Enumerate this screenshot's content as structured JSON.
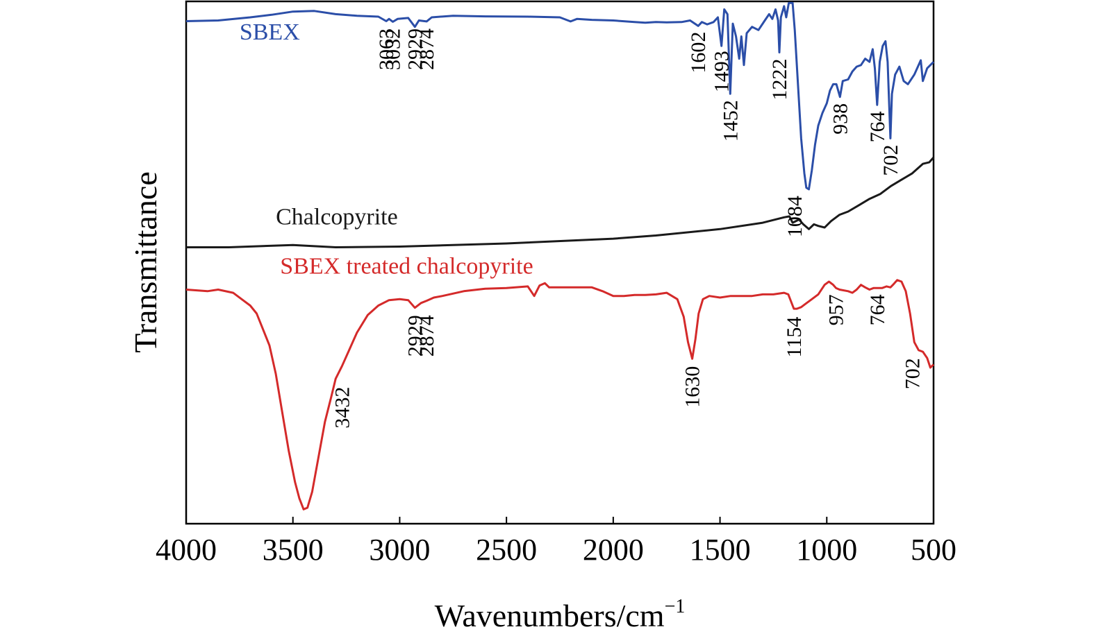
{
  "chart_data": {
    "type": "line",
    "xlabel": "Wavenumbers/cm",
    "xlabel_superscript": "−1",
    "ylabel": "Transmittance",
    "xlim": [
      4000,
      500
    ],
    "x_reversed": true,
    "y_ticks_shown": false,
    "grid": false,
    "xticks": [
      4000,
      3500,
      3000,
      2500,
      2000,
      1500,
      1000,
      500
    ],
    "series": [
      {
        "name": "SBEX",
        "color": "#2b4ea8",
        "points": [
          [
            4000,
            9.48
          ],
          [
            3850,
            9.5
          ],
          [
            3700,
            9.6
          ],
          [
            3600,
            9.68
          ],
          [
            3500,
            9.78
          ],
          [
            3400,
            9.8
          ],
          [
            3300,
            9.7
          ],
          [
            3200,
            9.65
          ],
          [
            3100,
            9.62
          ],
          [
            3063,
            9.48
          ],
          [
            3050,
            9.55
          ],
          [
            3032,
            9.46
          ],
          [
            3010,
            9.55
          ],
          [
            2960,
            9.58
          ],
          [
            2929,
            9.3
          ],
          [
            2910,
            9.5
          ],
          [
            2874,
            9.47
          ],
          [
            2850,
            9.6
          ],
          [
            2750,
            9.65
          ],
          [
            2600,
            9.63
          ],
          [
            2400,
            9.62
          ],
          [
            2250,
            9.6
          ],
          [
            2200,
            9.47
          ],
          [
            2170,
            9.55
          ],
          [
            2100,
            9.52
          ],
          [
            2000,
            9.5
          ],
          [
            1900,
            9.45
          ],
          [
            1850,
            9.43
          ],
          [
            1800,
            9.45
          ],
          [
            1750,
            9.44
          ],
          [
            1680,
            9.45
          ],
          [
            1640,
            9.5
          ],
          [
            1602,
            9.33
          ],
          [
            1585,
            9.45
          ],
          [
            1560,
            9.38
          ],
          [
            1530,
            9.45
          ],
          [
            1510,
            9.6
          ],
          [
            1493,
            8.7
          ],
          [
            1480,
            9.85
          ],
          [
            1465,
            9.7
          ],
          [
            1452,
            7.2
          ],
          [
            1440,
            9.4
          ],
          [
            1425,
            9.0
          ],
          [
            1410,
            8.3
          ],
          [
            1400,
            9.0
          ],
          [
            1388,
            8.1
          ],
          [
            1375,
            9.1
          ],
          [
            1350,
            9.3
          ],
          [
            1320,
            9.2
          ],
          [
            1290,
            9.5
          ],
          [
            1270,
            9.7
          ],
          [
            1255,
            9.55
          ],
          [
            1240,
            9.85
          ],
          [
            1228,
            9.5
          ],
          [
            1222,
            8.5
          ],
          [
            1215,
            9.6
          ],
          [
            1200,
            9.95
          ],
          [
            1190,
            9.6
          ],
          [
            1178,
            10.05
          ],
          [
            1160,
            10.05
          ],
          [
            1150,
            9.2
          ],
          [
            1135,
            7.5
          ],
          [
            1120,
            5.8
          ],
          [
            1105,
            4.7
          ],
          [
            1096,
            4.25
          ],
          [
            1084,
            4.2
          ],
          [
            1070,
            4.8
          ],
          [
            1055,
            5.6
          ],
          [
            1040,
            6.2
          ],
          [
            1020,
            6.6
          ],
          [
            1000,
            6.9
          ],
          [
            985,
            7.3
          ],
          [
            970,
            7.5
          ],
          [
            955,
            7.5
          ],
          [
            938,
            7.1
          ],
          [
            925,
            7.6
          ],
          [
            900,
            7.65
          ],
          [
            880,
            7.9
          ],
          [
            860,
            8.05
          ],
          [
            840,
            8.1
          ],
          [
            820,
            8.3
          ],
          [
            800,
            8.2
          ],
          [
            785,
            8.6
          ],
          [
            775,
            8.0
          ],
          [
            764,
            6.85
          ],
          [
            752,
            8.2
          ],
          [
            738,
            8.7
          ],
          [
            725,
            8.85
          ],
          [
            715,
            8.2
          ],
          [
            702,
            5.8
          ],
          [
            695,
            7.2
          ],
          [
            680,
            7.8
          ],
          [
            660,
            8.05
          ],
          [
            640,
            7.6
          ],
          [
            620,
            7.5
          ],
          [
            590,
            7.8
          ],
          [
            560,
            8.25
          ],
          [
            550,
            7.6
          ],
          [
            530,
            8.0
          ],
          [
            500,
            8.2
          ]
        ]
      },
      {
        "name": "Chalcopyrite",
        "color": "#1a1a1a",
        "points": [
          [
            4000,
            2.38
          ],
          [
            3800,
            2.38
          ],
          [
            3500,
            2.45
          ],
          [
            3300,
            2.38
          ],
          [
            3000,
            2.4
          ],
          [
            2500,
            2.5
          ],
          [
            2000,
            2.65
          ],
          [
            1800,
            2.75
          ],
          [
            1500,
            2.95
          ],
          [
            1300,
            3.15
          ],
          [
            1200,
            3.32
          ],
          [
            1175,
            3.35
          ],
          [
            1160,
            3.15
          ],
          [
            1130,
            3.25
          ],
          [
            1110,
            3.1
          ],
          [
            1084,
            2.95
          ],
          [
            1060,
            3.1
          ],
          [
            1040,
            3.05
          ],
          [
            1010,
            3.0
          ],
          [
            980,
            3.2
          ],
          [
            940,
            3.4
          ],
          [
            900,
            3.5
          ],
          [
            850,
            3.7
          ],
          [
            800,
            3.9
          ],
          [
            750,
            4.05
          ],
          [
            700,
            4.3
          ],
          [
            650,
            4.5
          ],
          [
            600,
            4.7
          ],
          [
            550,
            5.0
          ],
          [
            520,
            5.05
          ],
          [
            500,
            5.2
          ]
        ]
      },
      {
        "name": "SBEX treated chalcopyrite",
        "color": "#d42a2a",
        "points": [
          [
            4000,
            1.05
          ],
          [
            3900,
            1.0
          ],
          [
            3850,
            1.05
          ],
          [
            3780,
            0.95
          ],
          [
            3740,
            0.75
          ],
          [
            3700,
            0.55
          ],
          [
            3670,
            0.3
          ],
          [
            3640,
            -0.2
          ],
          [
            3610,
            -0.7
          ],
          [
            3580,
            -1.6
          ],
          [
            3550,
            -2.8
          ],
          [
            3520,
            -4.0
          ],
          [
            3490,
            -5.0
          ],
          [
            3470,
            -5.5
          ],
          [
            3450,
            -5.85
          ],
          [
            3432,
            -5.8
          ],
          [
            3410,
            -5.3
          ],
          [
            3380,
            -4.2
          ],
          [
            3350,
            -3.1
          ],
          [
            3320,
            -2.3
          ],
          [
            3300,
            -1.75
          ],
          [
            3270,
            -1.35
          ],
          [
            3240,
            -0.9
          ],
          [
            3200,
            -0.3
          ],
          [
            3150,
            0.25
          ],
          [
            3100,
            0.55
          ],
          [
            3050,
            0.72
          ],
          [
            3000,
            0.75
          ],
          [
            2960,
            0.72
          ],
          [
            2929,
            0.48
          ],
          [
            2900,
            0.63
          ],
          [
            2874,
            0.7
          ],
          [
            2840,
            0.8
          ],
          [
            2800,
            0.85
          ],
          [
            2700,
            1.0
          ],
          [
            2600,
            1.08
          ],
          [
            2500,
            1.1
          ],
          [
            2400,
            1.15
          ],
          [
            2370,
            0.85
          ],
          [
            2345,
            1.18
          ],
          [
            2320,
            1.25
          ],
          [
            2300,
            1.12
          ],
          [
            2200,
            1.12
          ],
          [
            2100,
            1.12
          ],
          [
            2050,
            1.0
          ],
          [
            2000,
            0.85
          ],
          [
            1950,
            0.85
          ],
          [
            1900,
            0.88
          ],
          [
            1850,
            0.88
          ],
          [
            1800,
            0.9
          ],
          [
            1750,
            0.95
          ],
          [
            1700,
            0.75
          ],
          [
            1670,
            0.2
          ],
          [
            1650,
            -0.6
          ],
          [
            1630,
            -1.12
          ],
          [
            1615,
            -0.5
          ],
          [
            1600,
            0.3
          ],
          [
            1580,
            0.75
          ],
          [
            1550,
            0.85
          ],
          [
            1500,
            0.8
          ],
          [
            1450,
            0.85
          ],
          [
            1400,
            0.85
          ],
          [
            1350,
            0.85
          ],
          [
            1300,
            0.9
          ],
          [
            1250,
            0.9
          ],
          [
            1200,
            0.95
          ],
          [
            1180,
            0.9
          ],
          [
            1160,
            0.55
          ],
          [
            1154,
            0.45
          ],
          [
            1140,
            0.45
          ],
          [
            1120,
            0.5
          ],
          [
            1100,
            0.6
          ],
          [
            1070,
            0.75
          ],
          [
            1040,
            0.9
          ],
          [
            1010,
            1.2
          ],
          [
            990,
            1.3
          ],
          [
            970,
            1.2
          ],
          [
            957,
            1.1
          ],
          [
            940,
            1.05
          ],
          [
            900,
            1.0
          ],
          [
            880,
            0.95
          ],
          [
            860,
            1.05
          ],
          [
            840,
            1.2
          ],
          [
            820,
            1.12
          ],
          [
            800,
            1.05
          ],
          [
            780,
            1.1
          ],
          [
            764,
            1.1
          ],
          [
            740,
            1.1
          ],
          [
            720,
            1.15
          ],
          [
            702,
            1.12
          ],
          [
            690,
            1.2
          ],
          [
            670,
            1.35
          ],
          [
            650,
            1.3
          ],
          [
            630,
            1.0
          ],
          [
            610,
            0.3
          ],
          [
            590,
            -0.6
          ],
          [
            570,
            -0.85
          ],
          [
            550,
            -0.9
          ],
          [
            530,
            -1.1
          ],
          [
            515,
            -1.4
          ],
          [
            500,
            -1.3
          ]
        ]
      }
    ],
    "series_labels": [
      {
        "text": "SBEX",
        "color": "#2b4ea8",
        "x": 3750,
        "y": 8.9
      },
      {
        "text": "Chalcopyrite",
        "color": "#1a1a1a",
        "x": 3580,
        "y": 3.1
      },
      {
        "text": "SBEX treated chalcopyrite",
        "color": "#d42a2a",
        "x": 3560,
        "y": 1.55
      }
    ],
    "peak_labels": [
      {
        "text": "3063",
        "x": 3063,
        "y": 9.25
      },
      {
        "text": "3032",
        "x": 3032,
        "y": 9.25
      },
      {
        "text": "2929",
        "x": 2929,
        "y": 9.25
      },
      {
        "text": "2874",
        "x": 2874,
        "y": 9.25
      },
      {
        "text": "1602",
        "x": 1602,
        "y": 9.15
      },
      {
        "text": "1493",
        "x": 1493,
        "y": 8.55
      },
      {
        "text": "1452",
        "x": 1452,
        "y": 7.0
      },
      {
        "text": "1222",
        "x": 1222,
        "y": 8.3
      },
      {
        "text": "938",
        "x": 938,
        "y": 6.9
      },
      {
        "text": "764",
        "x": 764,
        "y": 6.65
      },
      {
        "text": "702",
        "x": 702,
        "y": 5.6
      },
      {
        "text": "1084",
        "x": 1150,
        "y": 4.0
      },
      {
        "text": "2929",
        "x": 2929,
        "y": 0.25
      },
      {
        "text": "2874",
        "x": 2874,
        "y": 0.25
      },
      {
        "text": "3432",
        "x": 3270,
        "y": -2.0
      },
      {
        "text": "1630",
        "x": 1630,
        "y": -1.35
      },
      {
        "text": "1154",
        "x": 1154,
        "y": 0.2
      },
      {
        "text": "957",
        "x": 957,
        "y": 0.9
      },
      {
        "text": "764",
        "x": 764,
        "y": 0.9
      },
      {
        "text": "702",
        "x": 600,
        "y": -1.1
      }
    ]
  }
}
